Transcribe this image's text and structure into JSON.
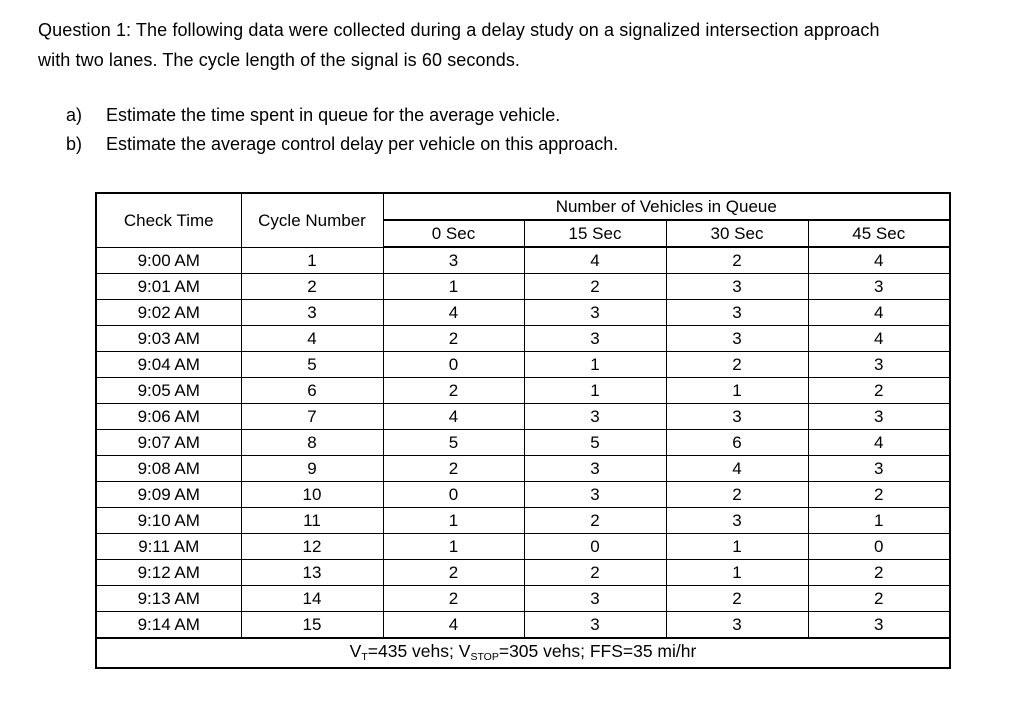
{
  "question": {
    "lines": [
      "Question 1: The following data were collected during a delay study on a signalized intersection approach",
      "with two lanes. The cycle length of the signal is 60 seconds."
    ],
    "sub_questions": [
      {
        "label": "a)",
        "text": "Estimate the time spent in queue for the average vehicle."
      },
      {
        "label": "b)",
        "text": "Estimate the average control delay per vehicle on this approach."
      }
    ]
  },
  "table": {
    "headers": {
      "check_time": "Check Time",
      "cycle_number": "Cycle Number",
      "queue_group": "Number of Vehicles in Queue",
      "intervals": [
        "0 Sec",
        "15 Sec",
        "30 Sec",
        "45 Sec"
      ]
    },
    "rows": [
      {
        "time": "9:00 AM",
        "cycle": "1",
        "q0": "3",
        "q15": "4",
        "q30": "2",
        "q45": "4"
      },
      {
        "time": "9:01 AM",
        "cycle": "2",
        "q0": "1",
        "q15": "2",
        "q30": "3",
        "q45": "3"
      },
      {
        "time": "9:02 AM",
        "cycle": "3",
        "q0": "4",
        "q15": "3",
        "q30": "3",
        "q45": "4"
      },
      {
        "time": "9:03 AM",
        "cycle": "4",
        "q0": "2",
        "q15": "3",
        "q30": "3",
        "q45": "4"
      },
      {
        "time": "9:04 AM",
        "cycle": "5",
        "q0": "0",
        "q15": "1",
        "q30": "2",
        "q45": "3"
      },
      {
        "time": "9:05 AM",
        "cycle": "6",
        "q0": "2",
        "q15": "1",
        "q30": "1",
        "q45": "2"
      },
      {
        "time": "9:06 AM",
        "cycle": "7",
        "q0": "4",
        "q15": "3",
        "q30": "3",
        "q45": "3"
      },
      {
        "time": "9:07 AM",
        "cycle": "8",
        "q0": "5",
        "q15": "5",
        "q30": "6",
        "q45": "4"
      },
      {
        "time": "9:08 AM",
        "cycle": "9",
        "q0": "2",
        "q15": "3",
        "q30": "4",
        "q45": "3"
      },
      {
        "time": "9:09 AM",
        "cycle": "10",
        "q0": "0",
        "q15": "3",
        "q30": "2",
        "q45": "2"
      },
      {
        "time": "9:10 AM",
        "cycle": "11",
        "q0": "1",
        "q15": "2",
        "q30": "3",
        "q45": "1"
      },
      {
        "time": "9:11 AM",
        "cycle": "12",
        "q0": "1",
        "q15": "0",
        "q30": "1",
        "q45": "0"
      },
      {
        "time": "9:12 AM",
        "cycle": "13",
        "q0": "2",
        "q15": "2",
        "q30": "1",
        "q45": "2"
      },
      {
        "time": "9:13 AM",
        "cycle": "14",
        "q0": "2",
        "q15": "3",
        "q30": "2",
        "q45": "2"
      },
      {
        "time": "9:14 AM",
        "cycle": "15",
        "q0": "4",
        "q15": "3",
        "q30": "3",
        "q45": "3"
      }
    ],
    "footer": {
      "seg1": "V",
      "sub1": "T",
      "seg2": "=435 vehs; V",
      "sub2": "STOP",
      "seg3": "=305 vehs; FFS=35 mi/hr"
    }
  }
}
